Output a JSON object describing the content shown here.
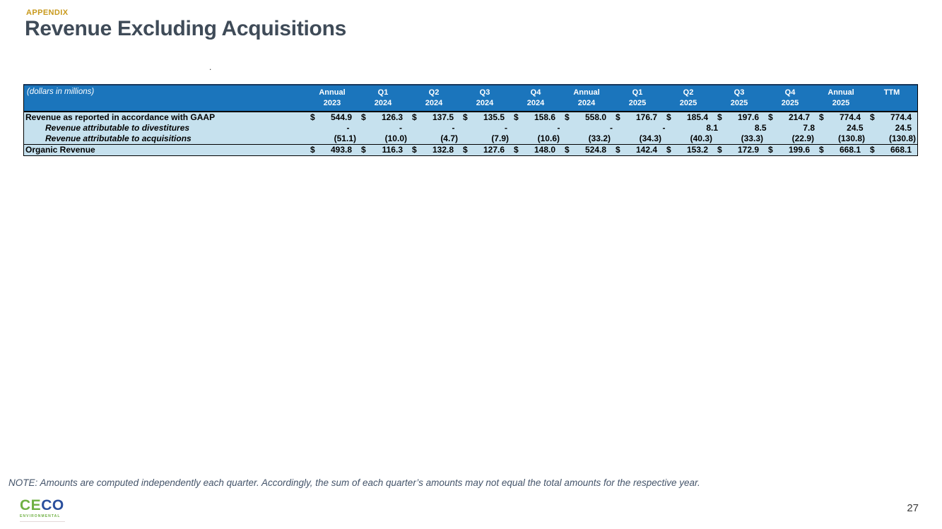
{
  "slide": {
    "eyebrow": "APPENDIX",
    "title": "Revenue Excluding Acquisitions",
    "stray_mark": ".",
    "note": "NOTE: Amounts are computed independently each quarter. Accordingly, the sum of each quarter’s amounts may not equal the total amounts for the respective year.",
    "page_number": "27"
  },
  "logo": {
    "part_green": "CE",
    "part_blue": "CO",
    "tagline": "ENVIRONMENTAL"
  },
  "table": {
    "caption": "(dollars in millions)",
    "columns": [
      {
        "line1": "Annual",
        "line2": "2023"
      },
      {
        "line1": "Q1",
        "line2": "2024"
      },
      {
        "line1": "Q2",
        "line2": "2024"
      },
      {
        "line1": "Q3",
        "line2": "2024"
      },
      {
        "line1": "Q4",
        "line2": "2024"
      },
      {
        "line1": "Annual",
        "line2": "2024"
      },
      {
        "line1": "Q1",
        "line2": "2025"
      },
      {
        "line1": "Q2",
        "line2": "2025"
      },
      {
        "line1": "Q3",
        "line2": "2025"
      },
      {
        "line1": "Q4",
        "line2": "2025"
      },
      {
        "line1": "Annual",
        "line2": "2025"
      },
      {
        "line1": "",
        "line2": "TTM"
      }
    ],
    "rows": [
      {
        "id": "gaap",
        "label": "Revenue as reported in accordance with GAAP",
        "style": "main",
        "dollar": true,
        "values": [
          "544.9",
          "126.3",
          "137.5",
          "135.5",
          "158.6",
          "558.0",
          "176.7",
          "185.4",
          "197.6",
          "214.7",
          "774.4",
          "774.4"
        ]
      },
      {
        "id": "divestitures",
        "label": "Revenue attributable to divestitures",
        "style": "sub",
        "dollar": false,
        "values": [
          "-",
          "-",
          "-",
          "-",
          "-",
          "-",
          "-",
          "8.1",
          "8.5",
          "7.8",
          "24.5",
          "24.5"
        ]
      },
      {
        "id": "acquisitions",
        "label": "Revenue attributable to acquisitions",
        "style": "sub",
        "dollar": false,
        "values": [
          "(51.1)",
          "(10.0)",
          "(4.7)",
          "(7.9)",
          "(10.6)",
          "(33.2)",
          "(34.3)",
          "(40.3)",
          "(33.3)",
          "(22.9)",
          "(130.8)",
          "(130.8)"
        ]
      },
      {
        "id": "organic",
        "label": "Organic Revenue",
        "style": "total",
        "dollar": true,
        "values": [
          "493.8",
          "116.3",
          "132.8",
          "127.6",
          "148.0",
          "524.8",
          "142.4",
          "153.2",
          "172.9",
          "199.6",
          "668.1",
          "668.1"
        ]
      }
    ]
  },
  "colors": {
    "accent_gold": "#C8991B",
    "title_color": "#3F4B58",
    "table_header_bg": "#1B75BC",
    "table_row_bg": "#C6E1EE",
    "note_text": "#44546A",
    "logo_green": "#6FB043",
    "logo_blue": "#2A4F9D"
  }
}
